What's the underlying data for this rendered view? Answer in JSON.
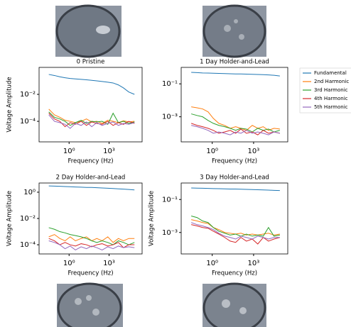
{
  "chart_data": [
    {
      "type": "line",
      "title": "0 Pristine",
      "xlabel": "Frequency (Hz)",
      "ylabel": "Voltage Amplitude",
      "log_x": true,
      "log_y": true,
      "xlim": [
        0.0056,
        300000
      ],
      "ylim": [
        3e-06,
        1
      ],
      "xticks": [
        {
          "value": 1,
          "label": "10⁰"
        },
        {
          "value": 1000,
          "label": "10³"
        }
      ],
      "yticks": [
        {
          "value": 0.01,
          "label": "10⁻²"
        },
        {
          "value": 0.0001,
          "label": "10⁻⁴"
        }
      ],
      "x": [
        0.03,
        0.08,
        0.2,
        0.5,
        1.2,
        3,
        8,
        20,
        50,
        120,
        300,
        800,
        2000,
        5000,
        12000,
        30000,
        80000
      ],
      "series": [
        {
          "color": "#1f77b4",
          "values": [
            0.3,
            0.25,
            0.2,
            0.17,
            0.15,
            0.14,
            0.13,
            0.12,
            0.11,
            0.1,
            0.09,
            0.08,
            0.07,
            0.05,
            0.03,
            0.015,
            0.01
          ]
        },
        {
          "color": "#ff7f0e",
          "values": [
            0.0008,
            0.0003,
            0.0002,
            0.00012,
            0.0001,
            8e-05,
            0.0001,
            0.00015,
            9e-05,
            0.0001,
            7e-05,
            0.00012,
            0.0001,
            8e-05,
            0.00011,
            9e-05,
            0.0001
          ]
        },
        {
          "color": "#2ca02c",
          "values": [
            0.0005,
            0.0002,
            0.00015,
            0.0001,
            5e-05,
            8e-05,
            0.00012,
            7e-05,
            0.0001,
            9e-05,
            0.0001,
            6e-05,
            0.0004,
            8e-05,
            0.0001,
            7e-05,
            9e-05
          ]
        },
        {
          "color": "#d62728",
          "values": [
            0.0004,
            0.00015,
            0.0001,
            4e-05,
            8e-05,
            6e-05,
            0.0001,
            5e-05,
            9e-05,
            7e-05,
            6e-05,
            0.0001,
            5e-05,
            8e-05,
            6e-05,
            0.0001,
            7e-05
          ]
        },
        {
          "color": "#9467bd",
          "values": [
            0.0003,
            0.0001,
            8e-05,
            6e-05,
            3e-05,
            7e-05,
            5e-05,
            9e-05,
            4e-05,
            8e-05,
            5e-05,
            7e-05,
            9e-05,
            5e-05,
            7e-05,
            6e-05,
            8e-05
          ]
        }
      ]
    },
    {
      "type": "line",
      "title": "1 Day Holder-and-Lead",
      "xlabel": "Frequency (Hz)",
      "log_x": true,
      "log_y": true,
      "legend": "outside-right",
      "xlim": [
        0.0056,
        300000
      ],
      "ylim": [
        3e-05,
        1
      ],
      "xticks": [
        {
          "value": 1,
          "label": "10⁰"
        },
        {
          "value": 1000,
          "label": "10³"
        }
      ],
      "yticks": [
        {
          "value": 0.1,
          "label": "10⁻¹"
        },
        {
          "value": 0.001,
          "label": "10⁻³"
        }
      ],
      "x": [
        0.03,
        0.08,
        0.2,
        0.5,
        1.2,
        3,
        8,
        20,
        50,
        120,
        300,
        800,
        2000,
        5000,
        12000,
        30000,
        80000
      ],
      "series": [
        {
          "name": "Fundamental",
          "color": "#1f77b4",
          "values": [
            0.5,
            0.48,
            0.46,
            0.45,
            0.44,
            0.43,
            0.42,
            0.41,
            0.4,
            0.4,
            0.39,
            0.38,
            0.37,
            0.36,
            0.35,
            0.33,
            0.3
          ]
        },
        {
          "name": "2nd Harmonic",
          "color": "#ff7f0e",
          "values": [
            0.004,
            0.0035,
            0.003,
            0.002,
            0.0008,
            0.0004,
            0.0003,
            0.0002,
            0.00025,
            0.0002,
            0.00015,
            0.0003,
            0.0002,
            0.00025,
            0.00015,
            0.0002,
            0.00018
          ]
        },
        {
          "name": "3rd Harmonic",
          "color": "#2ca02c",
          "values": [
            0.0015,
            0.0012,
            0.001,
            0.0006,
            0.0004,
            0.0003,
            0.00025,
            0.0002,
            0.00015,
            0.0002,
            0.00018,
            0.00012,
            0.0002,
            0.00015,
            0.00018,
            0.00012,
            0.00015
          ]
        },
        {
          "name": "4th Harmonic",
          "color": "#d62728",
          "values": [
            0.0004,
            0.0003,
            0.00025,
            0.0002,
            0.00015,
            0.0001,
            0.00012,
            0.00015,
            0.0001,
            0.00018,
            0.0001,
            0.00012,
            8e-05,
            0.00015,
            0.0001,
            0.00012,
            0.0001
          ]
        },
        {
          "name": "5th Harmonic",
          "color": "#9467bd",
          "values": [
            0.0003,
            0.00025,
            0.0002,
            0.00015,
            0.0001,
            0.00012,
            0.0001,
            8e-05,
            0.00012,
            0.0001,
            0.00015,
            0.0001,
            0.00012,
            0.0001,
            8e-05,
            0.00012,
            0.0001
          ]
        }
      ]
    },
    {
      "type": "line",
      "title": "2 Day Holder-and-Lead",
      "xlabel": "Frequency (Hz)",
      "ylabel": "Voltage Amplitude",
      "log_x": true,
      "log_y": true,
      "xlim": [
        0.0056,
        300000
      ],
      "ylim": [
        2e-05,
        5
      ],
      "xticks": [
        {
          "value": 1,
          "label": "10⁰"
        },
        {
          "value": 1000,
          "label": "10³"
        }
      ],
      "yticks": [
        {
          "value": 1,
          "label": "10⁰"
        },
        {
          "value": 0.01,
          "label": "10⁻²"
        },
        {
          "value": 0.0001,
          "label": "10⁻⁴"
        }
      ],
      "x": [
        0.03,
        0.08,
        0.2,
        0.5,
        1.2,
        3,
        8,
        20,
        50,
        120,
        300,
        800,
        2000,
        5000,
        12000,
        30000,
        80000
      ],
      "series": [
        {
          "color": "#1f77b4",
          "values": [
            3,
            2.9,
            2.8,
            2.7,
            2.6,
            2.5,
            2.4,
            2.3,
            2.3,
            2.2,
            2.1,
            2.0,
            1.9,
            1.8,
            1.7,
            1.6,
            1.5
          ]
        },
        {
          "color": "#ff7f0e",
          "values": [
            0.0004,
            0.0006,
            0.0003,
            0.0002,
            0.0004,
            0.0002,
            0.0003,
            0.0004,
            0.0002,
            0.0003,
            0.0002,
            0.0004,
            0.00015,
            0.0003,
            0.0002,
            0.0003,
            0.0003
          ]
        },
        {
          "color": "#2ca02c",
          "values": [
            0.002,
            0.0015,
            0.001,
            0.0008,
            0.0006,
            0.0005,
            0.0004,
            0.0003,
            0.0002,
            0.00015,
            0.0002,
            0.00015,
            0.0001,
            0.0002,
            0.00015,
            0.0001,
            0.00015
          ]
        },
        {
          "color": "#d62728",
          "values": [
            0.0003,
            0.0002,
            0.0001,
            0.00015,
            0.0001,
            8e-05,
            0.00012,
            0.0001,
            7e-05,
            0.0001,
            0.00012,
            8e-05,
            0.0001,
            0.00015,
            6e-05,
            0.0001,
            0.0001
          ]
        },
        {
          "color": "#9467bd",
          "values": [
            0.0002,
            0.00015,
            0.0001,
            5e-05,
            8e-05,
            4e-05,
            7e-05,
            5e-05,
            8e-05,
            6e-05,
            4e-05,
            7e-05,
            5e-05,
            8e-05,
            6e-05,
            7e-05,
            6e-05
          ]
        }
      ]
    },
    {
      "type": "line",
      "title": "3 Day Holder-and-Lead",
      "xlabel": "Frequency (Hz)",
      "ylabel": "Voltage Amplitude",
      "log_x": true,
      "log_y": true,
      "xlim": [
        0.0056,
        300000
      ],
      "ylim": [
        5e-05,
        1
      ],
      "xticks": [
        {
          "value": 1,
          "label": "10⁰"
        },
        {
          "value": 1000,
          "label": "10³"
        }
      ],
      "yticks": [
        {
          "value": 0.1,
          "label": "10⁻¹"
        },
        {
          "value": 0.001,
          "label": "10⁻³"
        }
      ],
      "x": [
        0.03,
        0.08,
        0.2,
        0.5,
        1.2,
        3,
        8,
        20,
        50,
        120,
        300,
        800,
        2000,
        5000,
        12000,
        30000,
        80000
      ],
      "series": [
        {
          "color": "#1f77b4",
          "values": [
            0.5,
            0.49,
            0.48,
            0.47,
            0.46,
            0.45,
            0.44,
            0.43,
            0.43,
            0.42,
            0.41,
            0.4,
            0.39,
            0.38,
            0.37,
            0.36,
            0.35
          ]
        },
        {
          "color": "#ff7f0e",
          "values": [
            0.006,
            0.005,
            0.004,
            0.0035,
            0.002,
            0.0015,
            0.001,
            0.0009,
            0.0008,
            0.0009,
            0.0007,
            0.0008,
            0.0007,
            0.0008,
            0.0009,
            0.0007,
            0.0008
          ]
        },
        {
          "color": "#2ca02c",
          "values": [
            0.01,
            0.008,
            0.005,
            0.004,
            0.002,
            0.0012,
            0.0009,
            0.0007,
            0.0008,
            0.0006,
            0.0008,
            0.0006,
            0.0007,
            0.0006,
            0.002,
            0.0006,
            0.0007
          ]
        },
        {
          "color": "#d62728",
          "values": [
            0.003,
            0.0025,
            0.002,
            0.0018,
            0.0012,
            0.0008,
            0.0005,
            0.0003,
            0.00025,
            0.0005,
            0.0003,
            0.0004,
            0.0002,
            0.0005,
            0.0003,
            0.0004,
            0.0005
          ]
        },
        {
          "color": "#9467bd",
          "values": [
            0.004,
            0.003,
            0.0025,
            0.002,
            0.0015,
            0.0009,
            0.0006,
            0.0005,
            0.0004,
            0.0006,
            0.0005,
            0.0004,
            0.0006,
            0.0005,
            0.0004,
            0.0005,
            0.0005
          ]
        }
      ]
    }
  ]
}
